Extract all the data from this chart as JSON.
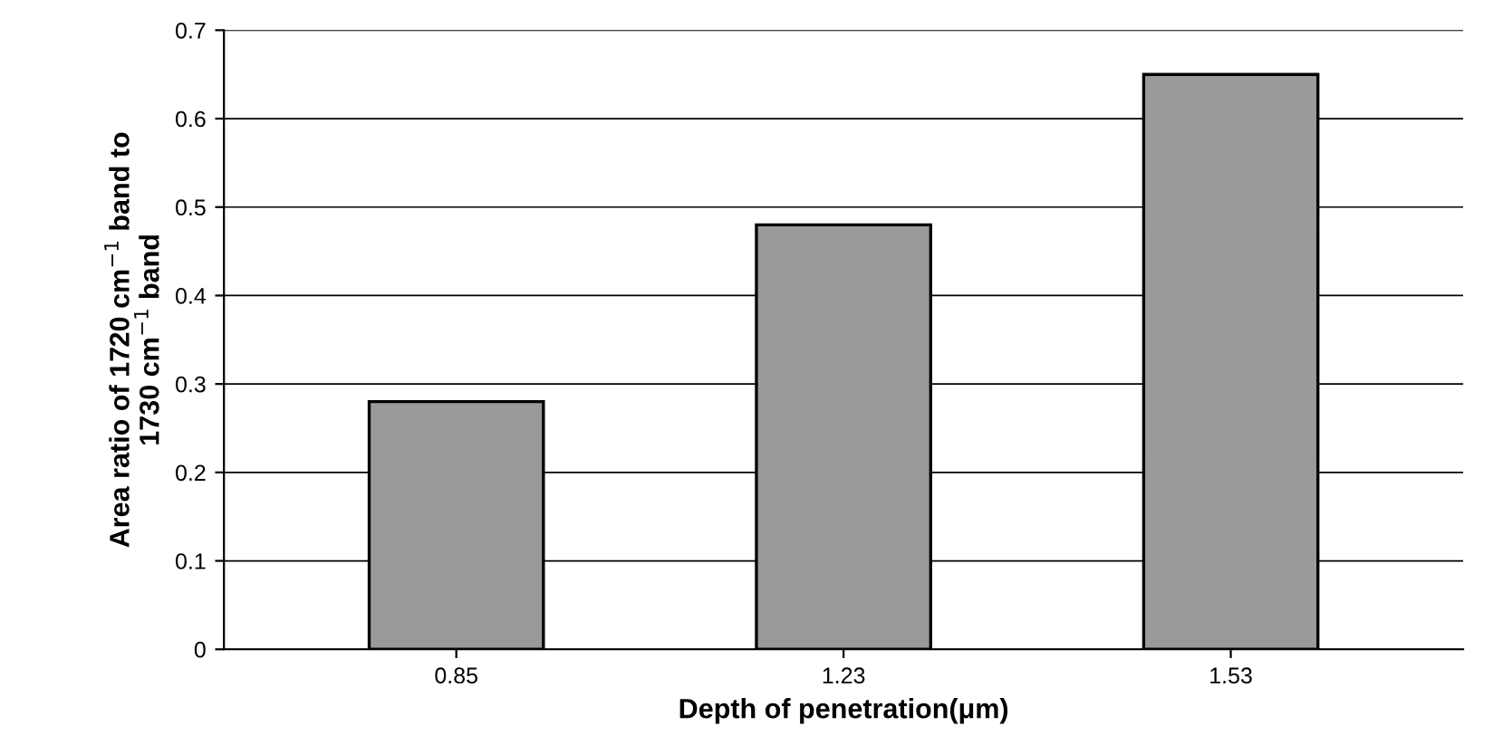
{
  "chart_data": {
    "type": "bar",
    "xlabel": "Depth of penetration(μm)",
    "ylabel": "Area ratio of 1720 cm$^{−1}$ band to\n1730 cm$^{−1}$ band",
    "categories": [
      "0.85",
      "1.23",
      "1.53"
    ],
    "values": [
      0.28,
      0.48,
      0.65
    ],
    "color": "#9a9a9a",
    "ylim": [
      0,
      0.7
    ],
    "yticks": [
      0,
      0.1,
      0.2,
      0.3,
      0.4,
      0.5,
      0.6,
      0.7
    ],
    "grid": "y"
  }
}
